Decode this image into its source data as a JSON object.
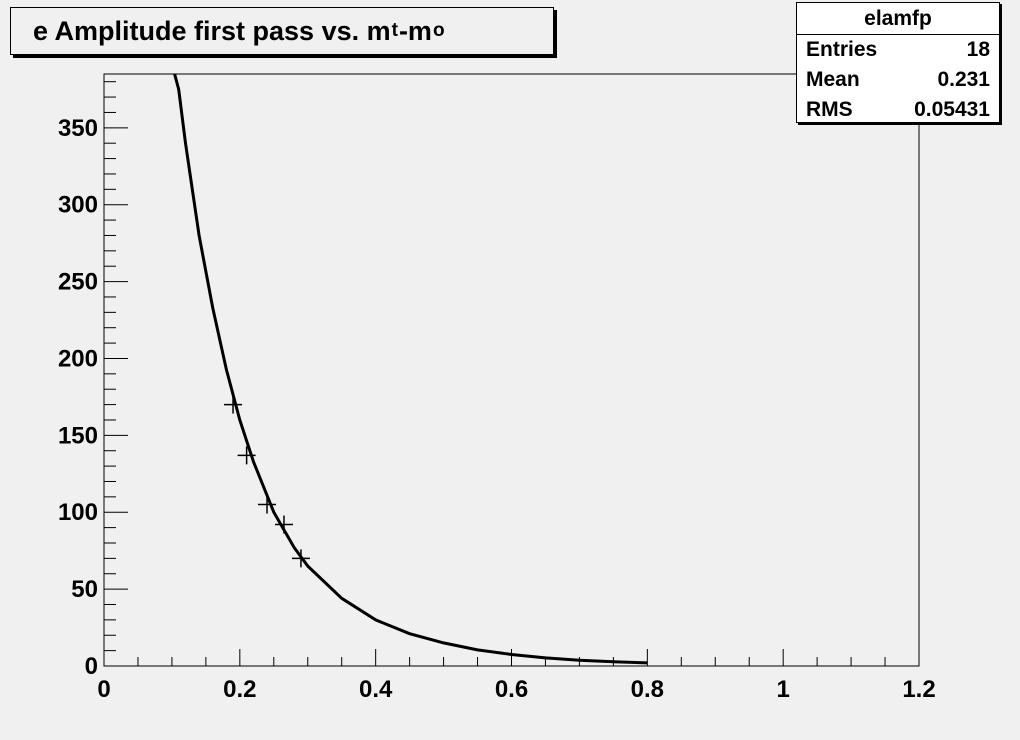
{
  "title": {
    "prefix": "e Amplitude first pass vs. m",
    "sub1": "t",
    "mid": "-m",
    "sub2": "o"
  },
  "stats_box": {
    "name": "elamfp",
    "rows": [
      {
        "label": "Entries",
        "value": "18"
      },
      {
        "label": "Mean",
        "value": "0.231"
      },
      {
        "label": "RMS",
        "value": "0.05431"
      }
    ]
  },
  "chart_data": {
    "type": "scatter",
    "title": "e Amplitude first pass vs. m_t-m_o",
    "xlabel": "",
    "ylabel": "",
    "xlim": [
      0,
      1.2
    ],
    "ylim": [
      0,
      385
    ],
    "x_ticks": [
      0,
      0.2,
      0.4,
      0.6,
      0.8,
      1,
      1.2
    ],
    "x_tick_labels": [
      "0",
      "0.2",
      "0.4",
      "0.6",
      "0.8",
      "1",
      "1.2"
    ],
    "y_ticks": [
      0,
      50,
      100,
      150,
      200,
      250,
      300,
      350
    ],
    "y_tick_labels": [
      "0",
      "50",
      "100",
      "150",
      "200",
      "250",
      "300",
      "350"
    ],
    "points": [
      {
        "x": 0.19,
        "y": 170
      },
      {
        "x": 0.21,
        "y": 137
      },
      {
        "x": 0.24,
        "y": 105
      },
      {
        "x": 0.265,
        "y": 92
      },
      {
        "x": 0.29,
        "y": 70
      }
    ],
    "fit_curve": {
      "x": [
        0.104,
        0.11,
        0.12,
        0.14,
        0.16,
        0.18,
        0.2,
        0.22,
        0.25,
        0.28,
        0.3,
        0.35,
        0.4,
        0.45,
        0.5,
        0.55,
        0.6,
        0.65,
        0.7,
        0.75,
        0.8
      ],
      "y": [
        385,
        375,
        340,
        280,
        233,
        193,
        160,
        133,
        100,
        77,
        65,
        44,
        30,
        21,
        15,
        10.5,
        7.5,
        5.3,
        3.8,
        2.7,
        2.0
      ]
    },
    "grid": false,
    "legend": "none",
    "colors": {
      "marker": "#000000",
      "curve": "#000000",
      "frame": "#f0f0f0"
    }
  }
}
